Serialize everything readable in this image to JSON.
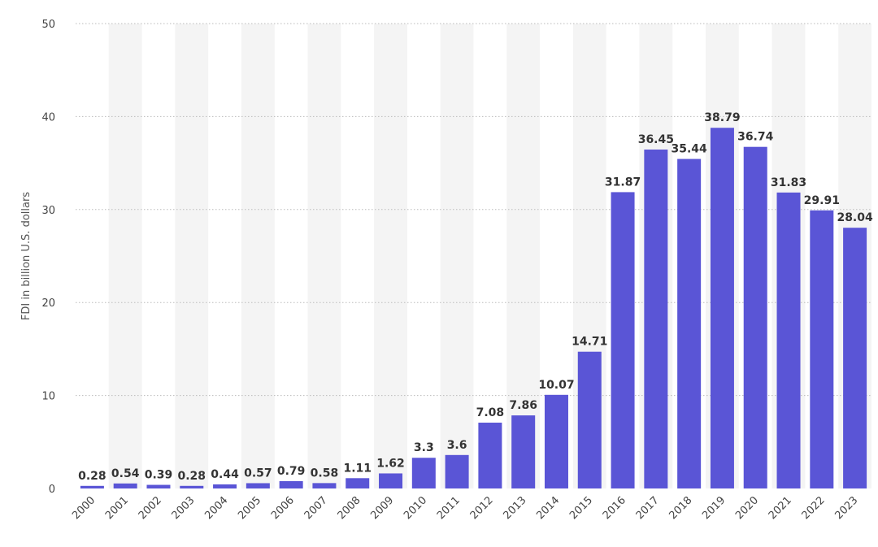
{
  "chart_data": {
    "type": "bar",
    "title": "",
    "xlabel": "",
    "ylabel": "FDI in billion U.S. dollars",
    "ylim": [
      0,
      50
    ],
    "yticks": [
      0,
      10,
      20,
      30,
      40,
      50
    ],
    "grid": true,
    "categories": [
      "2000",
      "2001",
      "2002",
      "2003",
      "2004",
      "2005",
      "2006",
      "2007",
      "2008",
      "2009",
      "2010",
      "2011",
      "2012",
      "2013",
      "2014",
      "2015",
      "2016",
      "2017",
      "2018",
      "2019",
      "2020",
      "2021",
      "2022",
      "2023"
    ],
    "values": [
      0.28,
      0.54,
      0.39,
      0.28,
      0.44,
      0.57,
      0.79,
      0.58,
      1.11,
      1.62,
      3.3,
      3.6,
      7.08,
      7.86,
      10.07,
      14.71,
      31.87,
      36.45,
      35.44,
      38.79,
      36.74,
      31.83,
      29.91,
      28.04
    ],
    "value_labels": [
      "0.28",
      "0.54",
      "0.39",
      "0.28",
      "0.44",
      "0.57",
      "0.79",
      "0.58",
      "1.11",
      "1.62",
      "3.3",
      "3.6",
      "7.08",
      "7.86",
      "10.07",
      "14.71",
      "31.87",
      "36.45",
      "35.44",
      "38.79",
      "36.74",
      "31.83",
      "29.91",
      "28.04"
    ],
    "bar_color": "#5a55d6",
    "band_color": "#f4f4f4",
    "grid_color": "#bbbbbb"
  }
}
